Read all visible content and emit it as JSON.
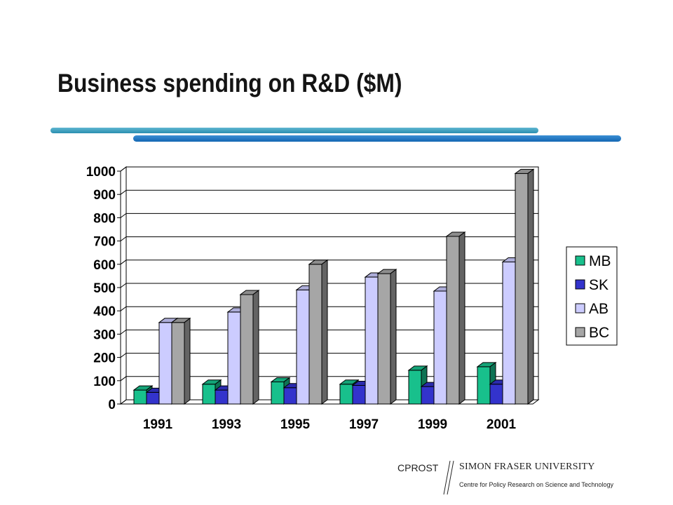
{
  "slide": {
    "title": "Business spending on R&D ($M)"
  },
  "footer": {
    "org": "CPROST",
    "university": "SIMON FRASER UNIVERSITY",
    "subtitle": "Centre for Policy Research on Science and Technology"
  },
  "chart_data": {
    "type": "bar",
    "title": "",
    "xlabel": "",
    "ylabel": "",
    "categories": [
      "1991",
      "1993",
      "1995",
      "1997",
      "1999",
      "2001"
    ],
    "series": [
      {
        "name": "MB",
        "color": "#18c08c",
        "values": [
          60,
          85,
          95,
          85,
          145,
          160
        ]
      },
      {
        "name": "SK",
        "color": "#3333cc",
        "values": [
          50,
          60,
          70,
          80,
          75,
          85
        ]
      },
      {
        "name": "AB",
        "color": "#ccccff",
        "values": [
          350,
          395,
          490,
          545,
          485,
          610
        ]
      },
      {
        "name": "BC",
        "color": "#a6a6a6",
        "values": [
          350,
          470,
          600,
          560,
          720,
          990
        ]
      }
    ],
    "ylim": [
      0,
      1000
    ],
    "yticks": [
      "0",
      "100",
      "200",
      "300",
      "400",
      "500",
      "600",
      "700",
      "800",
      "900",
      "1000"
    ],
    "grid": true,
    "legend": "right",
    "style": "3d-clustered-bar"
  }
}
